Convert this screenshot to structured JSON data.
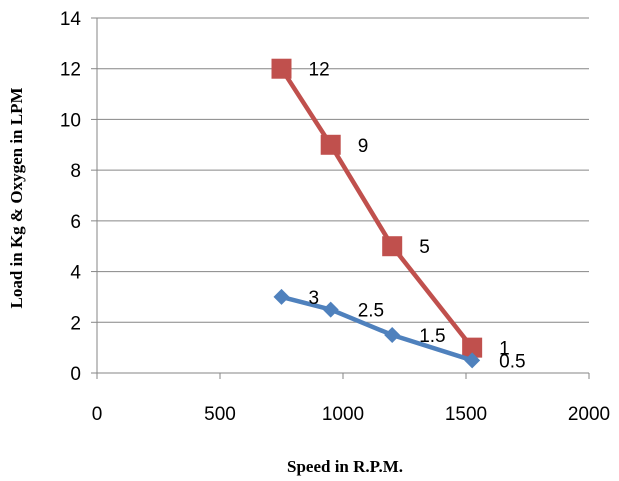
{
  "chart_data": {
    "type": "line",
    "xlabel": "Speed in R.P.M.",
    "ylabel": "Load in Kg & Oxygen in LPM",
    "xlim": [
      0,
      2000
    ],
    "ylim": [
      0,
      14
    ],
    "x_ticks": [
      0,
      500,
      1000,
      1500,
      2000
    ],
    "y_ticks": [
      0,
      2,
      4,
      6,
      8,
      10,
      12,
      14
    ],
    "grid": "horizontal",
    "legend": "none",
    "series": [
      {
        "color": "#c0504d",
        "marker": "square",
        "points": [
          {
            "x": 750,
            "y": 12,
            "label": "12"
          },
          {
            "x": 950,
            "y": 9,
            "label": "9"
          },
          {
            "x": 1200,
            "y": 5,
            "label": "5"
          },
          {
            "x": 1525,
            "y": 1,
            "label": "1"
          }
        ]
      },
      {
        "color": "#4f81bd",
        "marker": "diamond",
        "points": [
          {
            "x": 750,
            "y": 3,
            "label": "3"
          },
          {
            "x": 950,
            "y": 2.5,
            "label": "2.5"
          },
          {
            "x": 1200,
            "y": 1.5,
            "label": "1.5"
          },
          {
            "x": 1525,
            "y": 0.5,
            "label": "0.5"
          }
        ]
      }
    ]
  }
}
